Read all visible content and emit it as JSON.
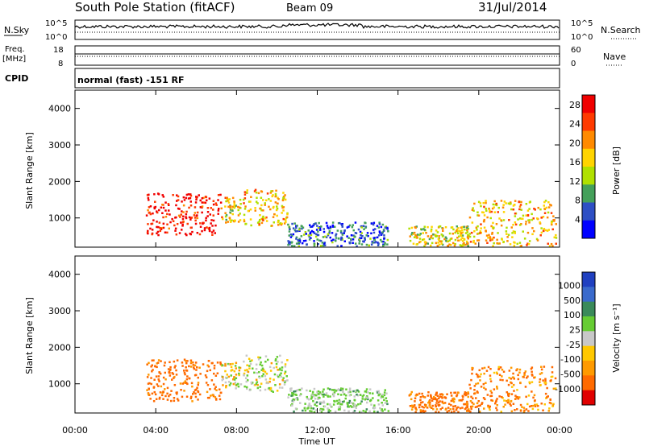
{
  "header": {
    "title": "South Pole Station (fitACF)",
    "beam": "Beam 09",
    "date": "31/Jul/2014"
  },
  "panels": {
    "nsky": {
      "label": "N.Sky",
      "left_ticks": [
        "10^5",
        "10^0"
      ],
      "right_ticks": [
        "10^5",
        "10^0"
      ],
      "right_label": "N.Search"
    },
    "freq": {
      "label_top": "Freq.",
      "label_unit": "[MHz]",
      "left_ticks": [
        "18",
        "8"
      ],
      "right_ticks": [
        "60",
        "0"
      ],
      "right_label": "Nave"
    },
    "cpid": {
      "label": "CPID",
      "text": "normal (fast) -151 RF"
    }
  },
  "chart_data": [
    {
      "type": "heatmap",
      "name": "power",
      "ylabel": "Slant Range [km]",
      "xlabel": "Time UT",
      "xlim": [
        0,
        24
      ],
      "ylim": [
        200,
        4500
      ],
      "x_ticks": [
        "00:00",
        "04:00",
        "08:00",
        "12:00",
        "16:00",
        "20:00",
        "00:00"
      ],
      "y_ticks": [
        "1000",
        "2000",
        "3000",
        "4000"
      ],
      "colorbar": {
        "label": "Power [dB]",
        "tick_labels": [
          "4",
          "8",
          "12",
          "16",
          "20",
          "24",
          "28"
        ],
        "range": [
          0,
          30
        ],
        "colors": [
          "#0000ff",
          "#2e4fc4",
          "#44a05a",
          "#b0e000",
          "#ffd400",
          "#ff8a00",
          "#ff3a00",
          "#f00000"
        ]
      },
      "regions": [
        {
          "t": [
            3.5,
            7.2
          ],
          "r": [
            550,
            1700
          ],
          "level": 0.95
        },
        {
          "t": [
            7.2,
            8.2
          ],
          "r": [
            900,
            1600
          ],
          "level": 0.55
        },
        {
          "t": [
            8.3,
            10.5
          ],
          "r": [
            800,
            1800
          ],
          "level": 0.6
        },
        {
          "t": [
            10.5,
            15.5
          ],
          "r": [
            250,
            900
          ],
          "level": 0.2
        },
        {
          "t": [
            16.5,
            19.5
          ],
          "r": [
            250,
            800
          ],
          "level": 0.5
        },
        {
          "t": [
            19.5,
            23.8
          ],
          "r": [
            250,
            1500
          ],
          "level": 0.6
        }
      ]
    },
    {
      "type": "heatmap",
      "name": "velocity",
      "ylabel": "Slant Range [km]",
      "xlabel": "Time UT",
      "xlim": [
        0,
        24
      ],
      "ylim": [
        200,
        4500
      ],
      "x_ticks": [
        "00:00",
        "04:00",
        "08:00",
        "12:00",
        "16:00",
        "20:00",
        "00:00"
      ],
      "y_ticks": [
        "1000",
        "2000",
        "3000",
        "4000"
      ],
      "colorbar": {
        "label": "Velocity [m s⁻¹]",
        "tick_labels": [
          "1000",
          "500",
          "100",
          "25",
          "-25",
          "-100",
          "-500",
          "-1000"
        ],
        "range": [
          -1000,
          1000
        ],
        "colors": [
          "#e00000",
          "#ff6a00",
          "#ff9a00",
          "#ffc800",
          "#c8c8c8",
          "#66cc33",
          "#3a8a5a",
          "#3a6acc",
          "#2040c0"
        ]
      },
      "regions": [
        {
          "t": [
            3.5,
            7.2
          ],
          "r": [
            550,
            1700
          ],
          "velocity": -180
        },
        {
          "t": [
            7.2,
            8.2
          ],
          "r": [
            900,
            1600
          ],
          "velocity": 40
        },
        {
          "t": [
            8.3,
            10.5
          ],
          "r": [
            800,
            1800
          ],
          "velocity": 80
        },
        {
          "t": [
            10.5,
            15.5
          ],
          "r": [
            250,
            900
          ],
          "velocity": 150
        },
        {
          "t": [
            16.5,
            19.5
          ],
          "r": [
            250,
            800
          ],
          "velocity": -150
        },
        {
          "t": [
            19.5,
            23.8
          ],
          "r": [
            250,
            1500
          ],
          "velocity": -120
        }
      ]
    }
  ]
}
